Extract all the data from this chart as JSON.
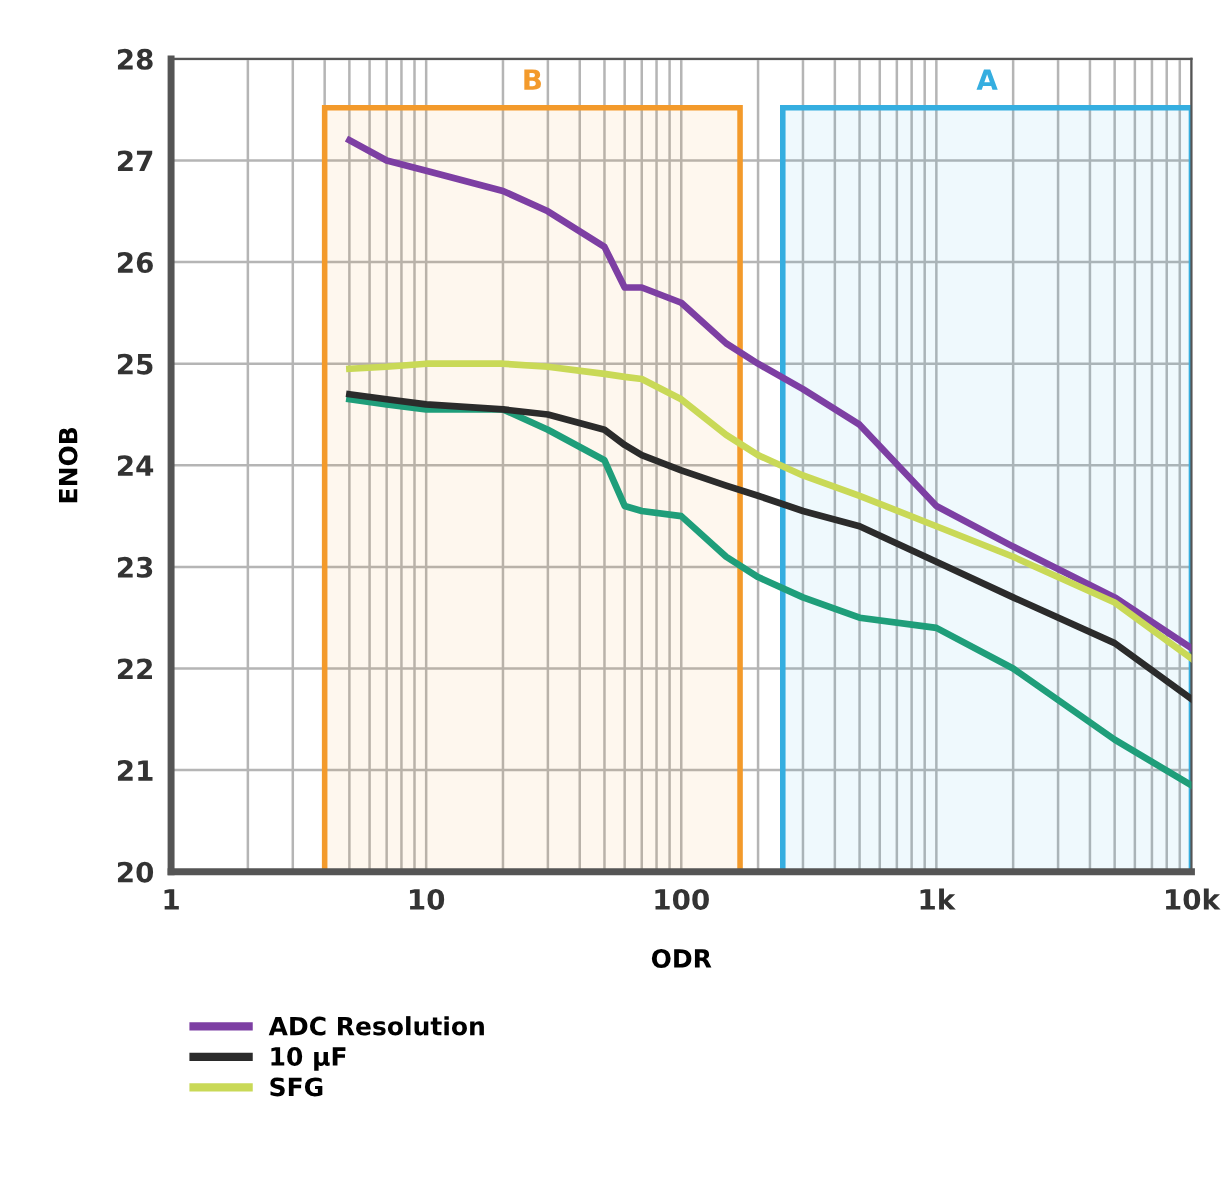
{
  "chart_data": {
    "type": "line",
    "xlabel": "ODR",
    "ylabel": "ENOB",
    "log": "x",
    "grid": true,
    "legend": "bottom",
    "line_style": "solid",
    "marker": "none",
    "xlim": [
      1,
      10000
    ],
    "ylim": [
      20,
      28
    ],
    "xticks": [
      1,
      10,
      100,
      {
        "value": 1000,
        "label": "1k"
      },
      {
        "value": 10000,
        "label": "10k"
      }
    ],
    "yticks": [
      20,
      21,
      22,
      23,
      24,
      25,
      26,
      27,
      28
    ],
    "x": [
      5,
      7,
      10,
      20,
      30,
      50,
      60,
      70,
      100,
      150,
      200,
      300,
      500,
      1000,
      2000,
      5000,
      10000
    ],
    "series": [
      {
        "name": "ADC Resolution",
        "color": "#7d3fa3",
        "values": [
          27.2,
          27.0,
          26.9,
          26.7,
          26.5,
          26.15,
          25.75,
          25.75,
          25.6,
          25.2,
          25.0,
          24.75,
          24.4,
          23.6,
          23.2,
          22.7,
          22.2
        ]
      },
      {
        "color": "#1f9e7a",
        "values": [
          24.65,
          24.6,
          24.55,
          24.55,
          24.35,
          24.05,
          23.6,
          23.55,
          23.5,
          23.1,
          22.9,
          22.7,
          22.5,
          22.4,
          22.0,
          21.3,
          20.85
        ]
      },
      {
        "name": "10 µF",
        "color": "#2b2b2b",
        "values": [
          24.7,
          24.65,
          24.6,
          24.55,
          24.5,
          24.35,
          24.2,
          24.1,
          23.95,
          23.8,
          23.7,
          23.55,
          23.4,
          23.05,
          22.7,
          22.25,
          21.7
        ]
      },
      {
        "name": "SFG",
        "color": "#c9d957",
        "values": [
          24.95,
          24.97,
          25.0,
          25.0,
          24.97,
          24.9,
          24.87,
          24.85,
          24.65,
          24.3,
          24.1,
          23.9,
          23.7,
          23.4,
          23.1,
          22.65,
          22.1
        ]
      }
    ],
    "bands": [
      {
        "axis": "x",
        "from": 4,
        "to": 170,
        "label": "B",
        "color": "#f39a2b"
      },
      {
        "axis": "x",
        "from": 250,
        "to": 10000,
        "label": "A",
        "color": "#35aee0"
      }
    ]
  }
}
